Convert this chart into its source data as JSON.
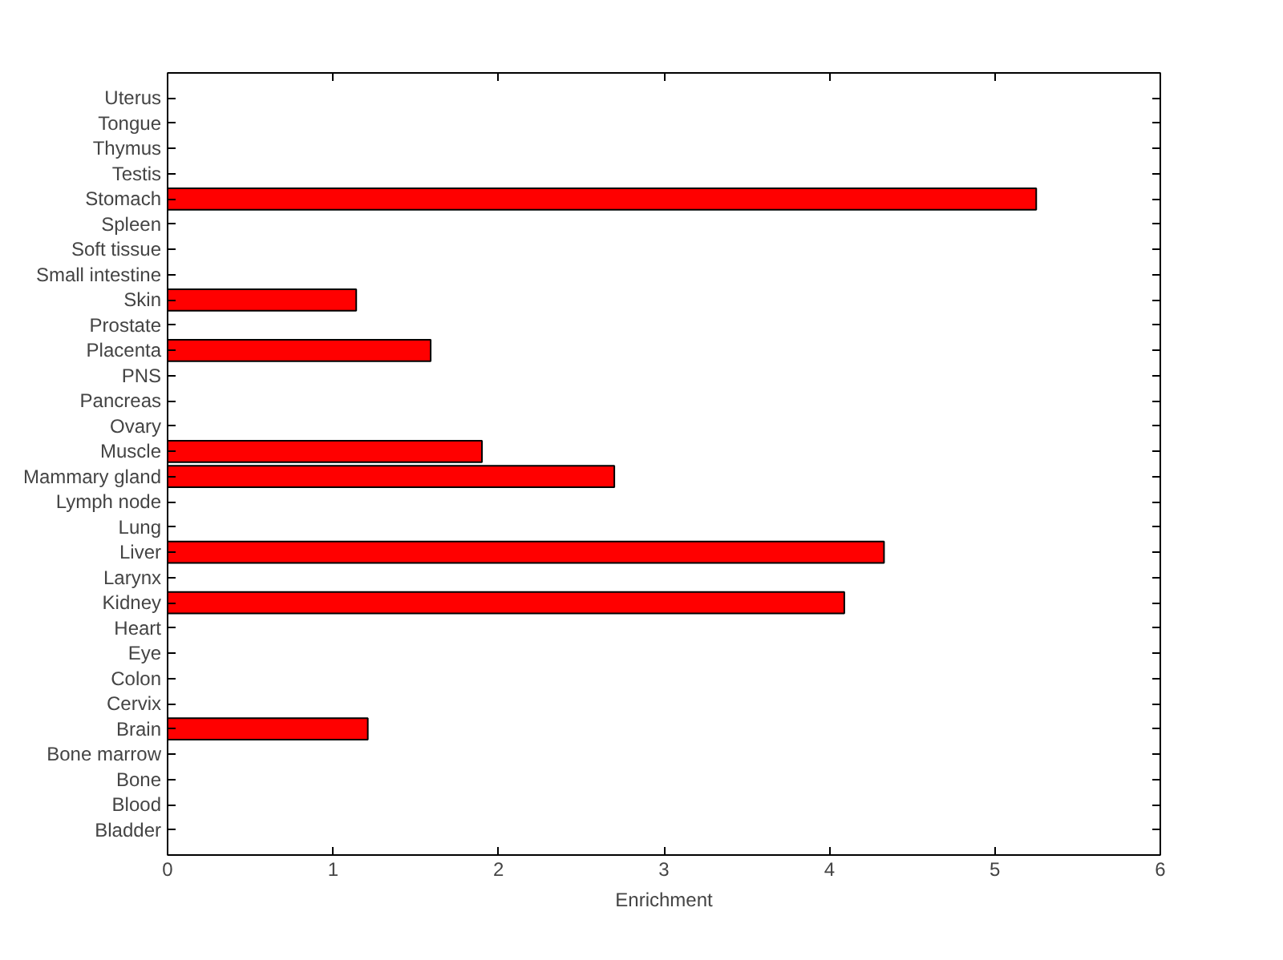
{
  "chart_data": {
    "type": "bar",
    "orientation": "horizontal",
    "xlabel": "Enrichment",
    "categories": [
      "Uterus",
      "Tongue",
      "Thymus",
      "Testis",
      "Stomach",
      "Spleen",
      "Soft tissue",
      "Small intestine",
      "Skin",
      "Prostate",
      "Placenta",
      "PNS",
      "Pancreas",
      "Ovary",
      "Muscle",
      "Mammary gland",
      "Lymph node",
      "Lung",
      "Liver",
      "Larynx",
      "Kidney",
      "Heart",
      "Eye",
      "Colon",
      "Cervix",
      "Brain",
      "Bone marrow",
      "Bone",
      "Blood",
      "Bladder"
    ],
    "values": [
      0,
      0,
      0,
      0,
      5.25,
      0,
      0,
      0,
      1.14,
      0,
      1.59,
      0,
      0,
      0,
      1.9,
      2.7,
      0,
      0,
      4.33,
      0,
      4.09,
      0,
      0,
      0,
      0,
      1.21,
      0,
      0,
      0,
      0
    ],
    "color": "#ff0000",
    "xlim": [
      0,
      6
    ],
    "xticks": [
      0,
      1,
      2,
      3,
      4,
      5,
      6
    ],
    "grid": false
  }
}
